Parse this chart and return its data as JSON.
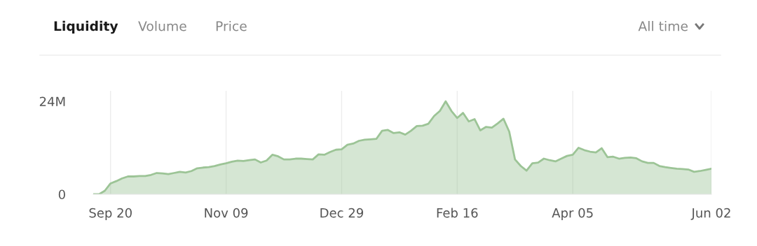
{
  "chart_data": {
    "type": "area",
    "annotations": [
      "Liquidity",
      "Volume",
      "Price",
      "All time"
    ],
    "categories": [
      null,
      null,
      null,
      "Sep 20",
      null,
      null,
      null,
      null,
      null,
      null,
      null,
      null,
      null,
      null,
      null,
      null,
      null,
      null,
      null,
      null,
      null,
      null,
      null,
      "Nov 09",
      null,
      null,
      null,
      null,
      null,
      null,
      null,
      null,
      null,
      null,
      null,
      null,
      null,
      null,
      null,
      null,
      null,
      null,
      null,
      "Dec 29",
      null,
      null,
      null,
      null,
      null,
      null,
      null,
      null,
      null,
      null,
      null,
      null,
      null,
      null,
      null,
      null,
      null,
      null,
      null,
      "Feb 16",
      null,
      null,
      null,
      null,
      null,
      null,
      null,
      null,
      null,
      null,
      null,
      null,
      null,
      null,
      null,
      null,
      null,
      null,
      null,
      "Apr 05",
      null,
      null,
      null,
      null,
      null,
      null,
      null,
      null,
      null,
      null,
      null,
      null,
      null,
      null,
      null,
      null,
      null,
      null,
      null,
      null,
      null,
      null,
      null,
      "Jun 02"
    ],
    "series": [
      {
        "color": "#9cc496",
        "values": [
          0,
          0,
          0.9,
          2.8,
          3.4,
          4.1,
          4.6,
          4.6,
          4.7,
          4.7,
          5.0,
          5.5,
          5.4,
          5.2,
          5.5,
          5.8,
          5.6,
          6.0,
          6.7,
          6.9,
          7.0,
          7.3,
          7.7,
          8.0,
          8.4,
          8.7,
          8.6,
          8.8,
          9.0,
          8.2,
          8.7,
          10.2,
          9.8,
          9.0,
          9.0,
          9.2,
          9.2,
          9.1,
          9.0,
          10.3,
          10.2,
          10.9,
          11.5,
          11.6,
          12.8,
          13.1,
          13.8,
          14.1,
          14.2,
          14.3,
          16.4,
          16.6,
          15.8,
          16.0,
          15.4,
          16.4,
          17.6,
          17.7,
          18.2,
          20.2,
          21.5,
          24.0,
          21.5,
          19.7,
          21.0,
          18.8,
          19.4,
          16.5,
          17.4,
          17.2,
          18.3,
          19.5,
          16.2,
          9.0,
          7.3,
          6.1,
          8.0,
          8.2,
          9.2,
          8.8,
          8.5,
          9.2,
          9.9,
          10.2,
          12.0,
          11.4,
          11.0,
          10.8,
          11.9,
          9.6,
          9.7,
          9.2,
          9.4,
          9.5,
          9.3,
          8.5,
          8.1,
          8.1,
          7.3,
          7.0,
          6.8,
          6.6,
          6.5,
          6.4,
          5.8,
          6.0,
          6.3,
          6.6
        ]
      }
    ],
    "ylim": [
      0,
      26.7
    ],
    "yticks": [
      0,
      {
        "value": 24,
        "label": "24M"
      }
    ],
    "grid": "x"
  }
}
